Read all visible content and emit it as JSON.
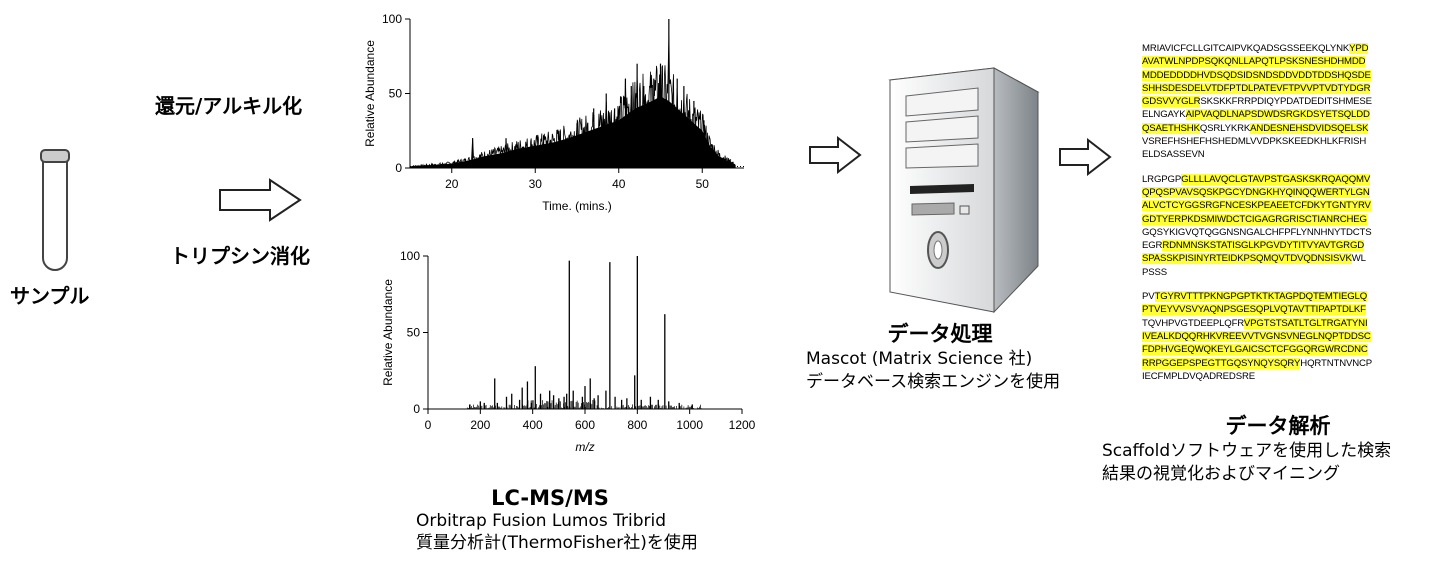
{
  "sample": {
    "label": "サンプル"
  },
  "prep": {
    "step1": "還元/アルキル化",
    "step2": "トリプシン消化"
  },
  "lcms": {
    "title": "LC-MS/MS",
    "desc1": "Orbitrap Fusion Lumos Tribrid",
    "desc2": "質量分析計(ThermoFisher社)を使用"
  },
  "processing": {
    "title": "データ処理",
    "desc1": "Mascot  (Matrix  Science 社)",
    "desc2": "データベース検索エンジンを使用"
  },
  "analysis": {
    "title": "データ解析",
    "desc1": "Scaffoldソフトウェアを使用した検索",
    "desc2": "結果の視覚化およびマイニング"
  },
  "colors": {
    "highlight": "#ffff33",
    "spectrum": "#000000"
  },
  "chart_data": [
    {
      "type": "area",
      "ylabel": "Relative Abundance",
      "xlabel": "Time. (mins.)",
      "xlim": [
        15,
        55
      ],
      "ylim": [
        0,
        100
      ],
      "xticks": [
        20,
        30,
        40,
        50
      ],
      "yticks": [
        0,
        50,
        100
      ],
      "envelope": [
        [
          15,
          1
        ],
        [
          18,
          2
        ],
        [
          20,
          3
        ],
        [
          22,
          5
        ],
        [
          24,
          8
        ],
        [
          26,
          10
        ],
        [
          28,
          13
        ],
        [
          30,
          15
        ],
        [
          32,
          17
        ],
        [
          34,
          20
        ],
        [
          36,
          24
        ],
        [
          38,
          28
        ],
        [
          40,
          32
        ],
        [
          42,
          40
        ],
        [
          44,
          45
        ],
        [
          45,
          48
        ],
        [
          46,
          45
        ],
        [
          48,
          35
        ],
        [
          50,
          25
        ],
        [
          51,
          14
        ],
        [
          52,
          8
        ],
        [
          53,
          5
        ],
        [
          54,
          2
        ]
      ],
      "peaks": [
        [
          22.5,
          20
        ],
        [
          26.5,
          20
        ],
        [
          28.5,
          14
        ],
        [
          31,
          22
        ],
        [
          33,
          25
        ],
        [
          35,
          30
        ],
        [
          37,
          40
        ],
        [
          38.5,
          50
        ],
        [
          39.5,
          40
        ],
        [
          40.8,
          60
        ],
        [
          41.5,
          55
        ],
        [
          42.2,
          70
        ],
        [
          43,
          55
        ],
        [
          44.2,
          60
        ],
        [
          45,
          70
        ],
        [
          46,
          100
        ],
        [
          47,
          60
        ],
        [
          47.8,
          55
        ],
        [
          49,
          45
        ],
        [
          50.2,
          32
        ]
      ]
    },
    {
      "type": "bar",
      "ylabel": "Relative Abundance",
      "xlabel": "m/z",
      "xlim": [
        0,
        1200
      ],
      "ylim": [
        0,
        100
      ],
      "xticks": [
        0,
        200,
        400,
        600,
        800,
        1000,
        1200
      ],
      "yticks": [
        0,
        50,
        100
      ],
      "peaks": [
        [
          160,
          3
        ],
        [
          200,
          5
        ],
        [
          215,
          4
        ],
        [
          255,
          20
        ],
        [
          265,
          4
        ],
        [
          300,
          8
        ],
        [
          320,
          10
        ],
        [
          350,
          6
        ],
        [
          360,
          14
        ],
        [
          380,
          18
        ],
        [
          395,
          4
        ],
        [
          410,
          28
        ],
        [
          430,
          10
        ],
        [
          455,
          5
        ],
        [
          465,
          12
        ],
        [
          480,
          9
        ],
        [
          500,
          7
        ],
        [
          520,
          8
        ],
        [
          530,
          10
        ],
        [
          540,
          97
        ],
        [
          555,
          12
        ],
        [
          590,
          8
        ],
        [
          600,
          15
        ],
        [
          620,
          20
        ],
        [
          635,
          7
        ],
        [
          650,
          9
        ],
        [
          680,
          12
        ],
        [
          695,
          96
        ],
        [
          715,
          8
        ],
        [
          740,
          6
        ],
        [
          760,
          7
        ],
        [
          790,
          22
        ],
        [
          800,
          100
        ],
        [
          815,
          6
        ],
        [
          850,
          8
        ],
        [
          880,
          6
        ],
        [
          905,
          62
        ],
        [
          920,
          5
        ],
        [
          960,
          4
        ],
        [
          1010,
          3
        ]
      ]
    }
  ],
  "sequences": [
    [
      [
        [
          "MRIAVICFCLLGITCAIPVKQADSGSSEEKQLYNK",
          0
        ],
        [
          "YPD",
          1
        ]
      ],
      [
        [
          "AVATWLNPDPSQKQNLLAPQTLPSKSNESHDHMDD",
          1
        ]
      ],
      [
        [
          "MDDEDDDDHVDSQDSIDSNDSDDVDDTDDSHQSDE",
          1
        ]
      ],
      [
        [
          "SHHSDESDELVTDFPTDLPATEVFTPVVPTVDTYDGR",
          1
        ]
      ],
      [
        [
          "GDSVVYGLR",
          1
        ],
        [
          "SKSKKFRRPDIQYPDATDEDITSHMESE",
          0
        ]
      ],
      [
        [
          "ELNGAYK",
          0
        ],
        [
          "AIPVAQDLNAPSDWDSRGKDSYETSQLDD",
          1
        ]
      ],
      [
        [
          "QSAETHSHK",
          1
        ],
        [
          "QSRLYKRK",
          0
        ],
        [
          "ANDESNEHSDVIDSQELSK",
          1
        ]
      ],
      [
        [
          "VSREFHSHEFHSHEDMLVVDPKSKEEDKHLKFRISH",
          0
        ]
      ],
      [
        [
          "ELDSASSEVN",
          0
        ]
      ]
    ],
    [
      [
        [
          "LRGPGP",
          0
        ],
        [
          "GLLLLAVQCLGTAVPSTGASKSKRQAQQMV",
          1
        ]
      ],
      [
        [
          "QPQSPVAVSQSKPGCYDNGKHYQINQQWERTYLGN",
          1
        ]
      ],
      [
        [
          "ALVCTCYGGSRGFNCESKPEAEETCFDKYTGNTYRV",
          1
        ]
      ],
      [
        [
          "GDTYERPKDSMIWDCTCIGAGRGRISCTIANRCHEG",
          1
        ]
      ],
      [
        [
          "GQSYKIGVQTQGGNSNGALCHFPFLYNNHNYTDCTS",
          0
        ]
      ],
      [
        [
          "EGR",
          0
        ],
        [
          "RDNMNSKSTATISGLKPGVDYTITVYAVTGRGD",
          1
        ]
      ],
      [
        [
          "SPASSKPISINYRTEIDKPSQMQVTDVQDNSISVK",
          1
        ],
        [
          "WL",
          0
        ]
      ],
      [
        [
          "PSSS",
          0
        ]
      ]
    ],
    [
      [
        [
          "PV",
          0
        ],
        [
          "TGYRVTTTPKNGPGPTKTKTAGPDQTEMTIEGLQ",
          1
        ]
      ],
      [
        [
          "PTVEYVVSVYAQNPSGESQPLVQTAVTTIPAPTDLKF",
          1
        ]
      ],
      [
        [
          "TQVHPVGTDEEPLQFR",
          0
        ],
        [
          "VPGTSTSATLTGLTRGATYNI",
          1
        ]
      ],
      [
        [
          "IVEALKDQQRHKVREEVVTVGNSVNEGLNQPTDDSC",
          1
        ]
      ],
      [
        [
          "FDPHVGEQWQKEYLGAICSCTCFGGQRGWRCDNC",
          1
        ]
      ],
      [
        [
          "RRPGGEPSPEGTTGQSYNQYSQRY",
          1
        ],
        [
          "HQRTNTNVNCP",
          0
        ]
      ],
      [
        [
          "IECFMPLDVQADREDSRE",
          0
        ]
      ]
    ]
  ]
}
